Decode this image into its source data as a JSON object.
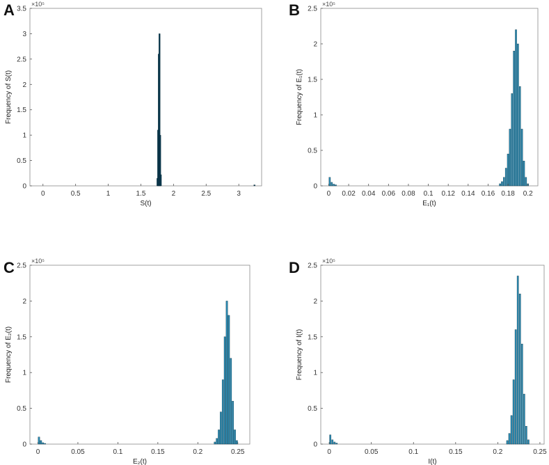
{
  "chart_data": [
    {
      "type": "histogram",
      "panel": "A",
      "xlabel": "S(t)",
      "ylabel": "Frequency of S(t)",
      "y_multiplier_label": "×10⁵",
      "xlim": [
        -0.2,
        3.35
      ],
      "ylim": [
        0,
        3.5
      ],
      "x_ticks": [
        0,
        0.5,
        1,
        1.5,
        2,
        2.5,
        3
      ],
      "x_tick_labels": [
        "0",
        "0.5",
        "1",
        "1.5",
        "2",
        "2.5",
        "3"
      ],
      "y_ticks": [
        0,
        0.5,
        1,
        1.5,
        2,
        2.5,
        3,
        3.5
      ],
      "y_tick_labels": [
        "0",
        "0.5",
        "1",
        "1.5",
        "2",
        "2.5",
        "3",
        "3.5"
      ],
      "bar_color": "#0b3a50",
      "bins": [
        {
          "x": 1.755,
          "y": 0.15
        },
        {
          "x": 1.765,
          "y": 1.1
        },
        {
          "x": 1.775,
          "y": 2.6
        },
        {
          "x": 1.785,
          "y": 3.0
        },
        {
          "x": 1.795,
          "y": 1.0
        },
        {
          "x": 1.805,
          "y": 0.22
        },
        {
          "x": 3.24,
          "y": 0.02
        }
      ]
    },
    {
      "type": "histogram",
      "panel": "B",
      "xlabel": "E₁(t)",
      "ylabel": "Frequency of E₁(t)",
      "y_multiplier_label": "×10⁵",
      "xlim": [
        -0.008,
        0.21
      ],
      "ylim": [
        0,
        2.5
      ],
      "x_ticks": [
        0,
        0.02,
        0.04,
        0.06,
        0.08,
        0.1,
        0.12,
        0.14,
        0.16,
        0.18,
        0.2
      ],
      "x_tick_labels": [
        "0",
        "0.02",
        "0.04",
        "0.06",
        "0.08",
        "0.1",
        "0.12",
        "0.14",
        "0.16",
        "0.18",
        "0.2"
      ],
      "y_ticks": [
        0,
        0.5,
        1,
        1.5,
        2,
        2.5
      ],
      "y_tick_labels": [
        "0",
        "0.5",
        "1",
        "1.5",
        "2",
        "2.5"
      ],
      "bar_color": "#2a8bb3",
      "bins": [
        {
          "x": 0.001,
          "y": 0.12
        },
        {
          "x": 0.003,
          "y": 0.05
        },
        {
          "x": 0.005,
          "y": 0.025
        },
        {
          "x": 0.007,
          "y": 0.015
        },
        {
          "x": 0.172,
          "y": 0.03
        },
        {
          "x": 0.174,
          "y": 0.06
        },
        {
          "x": 0.176,
          "y": 0.12
        },
        {
          "x": 0.178,
          "y": 0.25
        },
        {
          "x": 0.18,
          "y": 0.45
        },
        {
          "x": 0.182,
          "y": 0.8
        },
        {
          "x": 0.184,
          "y": 1.3
        },
        {
          "x": 0.186,
          "y": 1.9
        },
        {
          "x": 0.188,
          "y": 2.2
        },
        {
          "x": 0.19,
          "y": 2.0
        },
        {
          "x": 0.192,
          "y": 1.4
        },
        {
          "x": 0.194,
          "y": 0.8
        },
        {
          "x": 0.196,
          "y": 0.35
        },
        {
          "x": 0.198,
          "y": 0.12
        },
        {
          "x": 0.2,
          "y": 0.03
        }
      ]
    },
    {
      "type": "histogram",
      "panel": "C",
      "xlabel": "E₂(t)",
      "ylabel": "Frequency of E₂(t)",
      "y_multiplier_label": "×10⁵",
      "xlim": [
        -0.01,
        0.265
      ],
      "ylim": [
        0,
        2.5
      ],
      "x_ticks": [
        0,
        0.05,
        0.1,
        0.15,
        0.2,
        0.25
      ],
      "x_tick_labels": [
        "0",
        "0.05",
        "0.1",
        "0.15",
        "0.2",
        "0.25"
      ],
      "y_ticks": [
        0,
        0.5,
        1,
        1.5,
        2,
        2.5
      ],
      "y_tick_labels": [
        "0",
        "0.5",
        "1",
        "1.5",
        "2",
        "2.5"
      ],
      "bar_color": "#2a8bb3",
      "bins": [
        {
          "x": 0.0013,
          "y": 0.1
        },
        {
          "x": 0.0038,
          "y": 0.05
        },
        {
          "x": 0.0063,
          "y": 0.02
        },
        {
          "x": 0.0088,
          "y": 0.01
        },
        {
          "x": 0.2213,
          "y": 0.03
        },
        {
          "x": 0.2238,
          "y": 0.08
        },
        {
          "x": 0.2263,
          "y": 0.2
        },
        {
          "x": 0.2288,
          "y": 0.45
        },
        {
          "x": 0.2313,
          "y": 0.9
        },
        {
          "x": 0.2338,
          "y": 1.5
        },
        {
          "x": 0.2363,
          "y": 2.0
        },
        {
          "x": 0.2388,
          "y": 1.8
        },
        {
          "x": 0.2413,
          "y": 1.2
        },
        {
          "x": 0.2438,
          "y": 0.6
        },
        {
          "x": 0.2463,
          "y": 0.2
        },
        {
          "x": 0.2488,
          "y": 0.05
        }
      ]
    },
    {
      "type": "histogram",
      "panel": "D",
      "xlabel": "I(t)",
      "ylabel": "Frequency of I(t)",
      "y_multiplier_label": "×10⁵",
      "xlim": [
        -0.01,
        0.255
      ],
      "ylim": [
        0,
        2.5
      ],
      "x_ticks": [
        0,
        0.05,
        0.1,
        0.15,
        0.2,
        0.25
      ],
      "x_tick_labels": [
        "0",
        "0.05",
        "0.1",
        "0.15",
        "0.2",
        "0.25"
      ],
      "y_ticks": [
        0,
        0.5,
        1,
        1.5,
        2,
        2.5
      ],
      "y_tick_labels": [
        "0",
        "0.5",
        "1",
        "1.5",
        "2",
        "2.5"
      ],
      "bar_color": "#2a8bb3",
      "bins": [
        {
          "x": 0.0013,
          "y": 0.13
        },
        {
          "x": 0.0038,
          "y": 0.06
        },
        {
          "x": 0.0063,
          "y": 0.03
        },
        {
          "x": 0.0088,
          "y": 0.015
        },
        {
          "x": 0.2113,
          "y": 0.05
        },
        {
          "x": 0.2138,
          "y": 0.15
        },
        {
          "x": 0.2163,
          "y": 0.4
        },
        {
          "x": 0.2188,
          "y": 0.9
        },
        {
          "x": 0.2213,
          "y": 1.6
        },
        {
          "x": 0.2238,
          "y": 2.35
        },
        {
          "x": 0.2263,
          "y": 2.1
        },
        {
          "x": 0.2288,
          "y": 1.4
        },
        {
          "x": 0.2313,
          "y": 0.7
        },
        {
          "x": 0.2338,
          "y": 0.25
        },
        {
          "x": 0.2363,
          "y": 0.06
        }
      ]
    }
  ]
}
